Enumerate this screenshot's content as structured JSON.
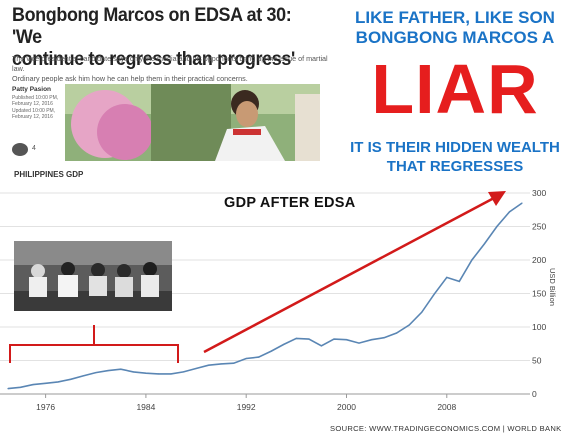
{
  "article": {
    "headline_line1": "Bongbong Marcos on EDSA at 30: 'We",
    "headline_line2": "continue to regress than progress'",
    "subhead_line1": "The vice presidential candidate says only the media and his opponents bring up the issue of martial law.",
    "subhead_line2": "Ordinary people ask him how he can help them in their practical concerns.",
    "author": "Patty Pasion",
    "published_line1": "Published 10:00 PM,",
    "published_line2": "February 12, 2016",
    "updated_line1": "Updated 10:00 PM,",
    "updated_line2": "February 12, 2016",
    "comment_count": "4"
  },
  "overlay": {
    "line1": "LIKE FATHER, LIKE SON",
    "line2": "BONGBONG MARCOS A",
    "liar": "LIAR",
    "line3": "IT IS THEIR HIDDEN WEALTH",
    "line4": "THAT REGRESSES",
    "gdp_after_edsa": "GDP AFTER EDSA"
  },
  "colors": {
    "overlay_blue": "#1a73c6",
    "liar_red": "#e61e1e",
    "annotation_red": "#d21a1a",
    "line_blue": "#5a86b4"
  },
  "chart_data": {
    "type": "line",
    "title": "PHILIPPINES GDP",
    "ylabel": "USD Billion",
    "xlim": [
      1973,
      2014
    ],
    "ylim": [
      0,
      300
    ],
    "x_ticks": [
      "1976",
      "1984",
      "1992",
      "2000",
      "2008"
    ],
    "x_tick_values": [
      1976,
      1984,
      1992,
      2000,
      2008
    ],
    "y_ticks": [
      "300",
      "250",
      "200",
      "150",
      "100",
      "50",
      "0"
    ],
    "y_tick_values": [
      300,
      250,
      200,
      150,
      100,
      50,
      0
    ],
    "grid": true,
    "series": [
      {
        "x": [
          1973,
          1974,
          1975,
          1976,
          1977,
          1978,
          1979,
          1980,
          1981,
          1982,
          1983,
          1984,
          1985,
          1986,
          1987,
          1988,
          1989,
          1990,
          1991,
          1992,
          1993,
          1994,
          1995,
          1996,
          1997,
          1998,
          1999,
          2000,
          2001,
          2002,
          2003,
          2004,
          2005,
          2006,
          2007,
          2008,
          2009,
          2010,
          2011,
          2012,
          2013,
          2014
        ],
        "values": [
          8,
          10,
          14,
          16,
          18,
          22,
          27,
          32,
          35,
          37,
          33,
          31,
          30,
          30,
          33,
          38,
          43,
          45,
          46,
          53,
          55,
          64,
          74,
          83,
          82,
          72,
          82,
          81,
          76,
          81,
          84,
          91,
          103,
          122,
          149,
          174,
          168,
          200,
          224,
          250,
          272,
          285
        ]
      }
    ],
    "source": "SOURCE:  WWW.TRADINGECONOMICS.COM  |  WORLD BANK"
  }
}
